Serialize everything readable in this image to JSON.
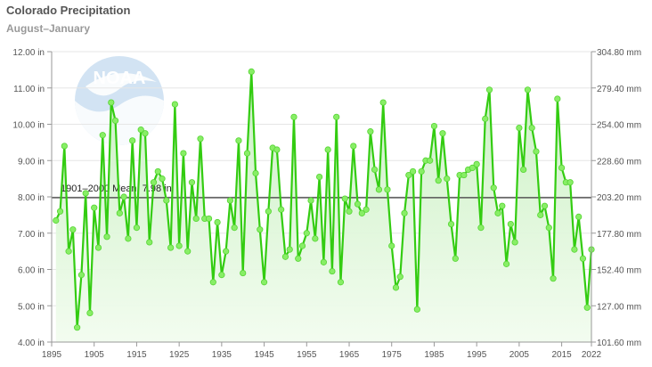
{
  "header": {
    "title": "Colorado Precipitation",
    "subtitle": "August–January"
  },
  "logo": {
    "text": "NOAA"
  },
  "chart_data": {
    "type": "area",
    "title": "Colorado Precipitation",
    "subtitle": "August–January",
    "x_start": 1896,
    "x_end": 2022,
    "values": [
      7.35,
      7.6,
      9.4,
      6.5,
      7.1,
      4.4,
      5.85,
      8.1,
      4.8,
      7.7,
      6.6,
      9.7,
      6.9,
      10.6,
      10.1,
      7.55,
      8.0,
      6.85,
      9.55,
      7.15,
      9.85,
      9.75,
      6.75,
      8.4,
      8.7,
      8.5,
      7.9,
      6.6,
      10.55,
      6.65,
      9.2,
      6.5,
      8.4,
      7.4,
      9.6,
      7.4,
      7.4,
      5.65,
      7.3,
      5.85,
      6.5,
      7.9,
      7.15,
      9.55,
      5.9,
      9.2,
      11.45,
      8.65,
      7.1,
      5.65,
      7.6,
      9.35,
      9.3,
      7.65,
      6.35,
      6.55,
      10.2,
      6.3,
      6.65,
      7.0,
      7.9,
      6.85,
      8.55,
      6.2,
      9.3,
      5.95,
      10.2,
      5.65,
      7.95,
      7.6,
      9.4,
      7.8,
      7.55,
      7.65,
      9.8,
      8.75,
      8.2,
      10.6,
      8.2,
      6.65,
      5.5,
      5.8,
      7.55,
      8.6,
      8.7,
      4.9,
      8.7,
      9.0,
      9.0,
      9.95,
      8.45,
      9.75,
      8.5,
      7.25,
      6.3,
      8.6,
      8.6,
      8.75,
      8.8,
      8.9,
      7.15,
      10.15,
      10.95,
      8.25,
      7.55,
      7.75,
      6.15,
      7.25,
      6.75,
      9.9,
      8.75,
      10.95,
      9.9,
      9.25,
      7.5,
      7.75,
      7.15,
      5.75,
      10.7,
      8.8,
      8.4,
      8.4,
      6.55,
      7.45,
      6.3,
      4.95,
      6.55
    ],
    "mean": {
      "value": 7.98,
      "label": "1901–2000 Mean: 7.98 in"
    },
    "xlim": [
      1895,
      2022
    ],
    "ylim": [
      4.0,
      12.0
    ],
    "x_ticks": [
      1895,
      1905,
      1915,
      1925,
      1935,
      1945,
      1955,
      1965,
      1975,
      1985,
      1995,
      2005,
      2015,
      2022
    ],
    "y_ticks_left": [
      "4.00 in",
      "5.00 in",
      "6.00 in",
      "7.00 in",
      "8.00 in",
      "9.00 in",
      "10.00 in",
      "11.00 in",
      "12.00 in"
    ],
    "y_ticks_right": [
      "101.60 mm",
      "127.00 mm",
      "152.40 mm",
      "177.80 mm",
      "203.20 mm",
      "228.60 mm",
      "254.00 mm",
      "279.40 mm",
      "304.80 mm"
    ],
    "grid": true,
    "colors": {
      "line": "#33cc11",
      "marker": "#88ee66",
      "area_top": "#c8f0c0",
      "area_bottom": "#f2fcef",
      "mean_line": "#555555",
      "grid": "#e6e6e6"
    }
  }
}
